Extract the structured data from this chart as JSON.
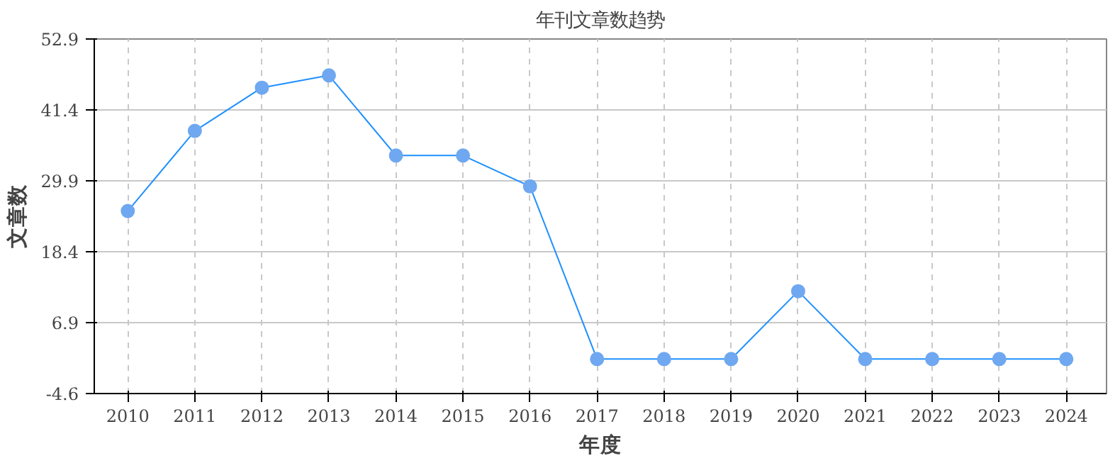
{
  "chart_data": {
    "type": "line",
    "title": "年刊文章数趋势",
    "xlabel": "年度",
    "ylabel": "文章数",
    "x": [
      2010,
      2011,
      2012,
      2013,
      2014,
      2015,
      2016,
      2017,
      2018,
      2019,
      2020,
      2021,
      2022,
      2023,
      2024
    ],
    "series": [
      {
        "color": "#1e90ff",
        "values": [
          25,
          38,
          45,
          47,
          34,
          34,
          29,
          1,
          1,
          1,
          12,
          1,
          1,
          1,
          1
        ]
      }
    ],
    "xlim": [
      2009.5,
      2024.6
    ],
    "xticks": [
      2010,
      2011,
      2012,
      2013,
      2014,
      2015,
      2016,
      2017,
      2018,
      2019,
      2020,
      2021,
      2022,
      2023,
      2024
    ],
    "ylim": [
      -4.6,
      52.9
    ],
    "yticks": [
      -4.6,
      6.9,
      18.4,
      29.9,
      41.4,
      52.9
    ],
    "grid": true,
    "marker": "circle",
    "line_style": "solid"
  }
}
